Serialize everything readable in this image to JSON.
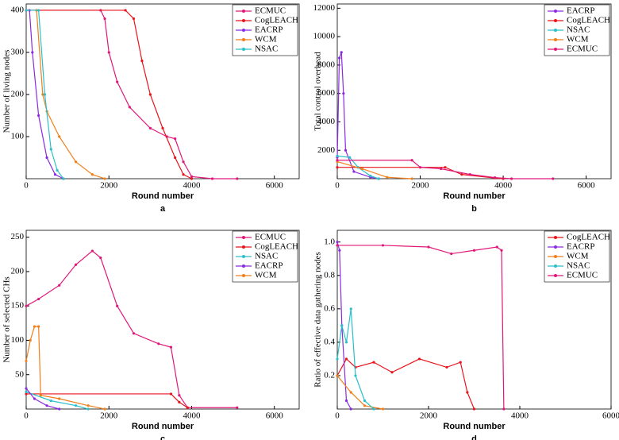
{
  "chart_data": [
    {
      "type": "line",
      "x_label": "Round number",
      "y_label": "Number of living nodes",
      "panel_label": "a",
      "xlim": [
        0,
        6600
      ],
      "xticks": [
        0,
        2000,
        4000,
        6000
      ],
      "ylim": [
        0,
        415
      ],
      "yticks": [
        100,
        200,
        300,
        400
      ],
      "series": [
        {
          "name": "ECMUC",
          "color": "#e0177a",
          "x": [
            0,
            1800,
            1900,
            2000,
            2200,
            2500,
            3000,
            3400,
            3600,
            3800,
            4000,
            4500,
            5100
          ],
          "values": [
            400,
            400,
            380,
            300,
            230,
            170,
            120,
            100,
            95,
            40,
            5,
            0,
            0
          ]
        },
        {
          "name": "CogLEACH",
          "color": "#e8141c",
          "x": [
            0,
            2400,
            2600,
            2800,
            3000,
            3300,
            3600,
            3800,
            4000
          ],
          "values": [
            400,
            400,
            380,
            280,
            200,
            120,
            50,
            10,
            0
          ]
        },
        {
          "name": "EACRP",
          "color": "#8a2be2",
          "x": [
            0,
            80,
            150,
            300,
            500,
            700,
            900
          ],
          "values": [
            400,
            400,
            300,
            150,
            50,
            10,
            0
          ]
        },
        {
          "name": "WCM",
          "color": "#f07f1a",
          "x": [
            0,
            250,
            400,
            500,
            800,
            1200,
            1600,
            1900
          ],
          "values": [
            400,
            400,
            200,
            160,
            100,
            40,
            10,
            0
          ]
        },
        {
          "name": "NSAC",
          "color": "#2bbfc9",
          "x": [
            0,
            300,
            450,
            600,
            750,
            900
          ],
          "values": [
            400,
            400,
            200,
            70,
            20,
            0
          ]
        }
      ]
    },
    {
      "type": "line",
      "x_label": "Round number",
      "y_label": "Total control overhead",
      "panel_label": "b",
      "xlim": [
        0,
        6600
      ],
      "xticks": [
        0,
        2000,
        4000,
        6000
      ],
      "ylim": [
        0,
        12300
      ],
      "yticks": [
        2000,
        4000,
        6000,
        8000,
        10000,
        12000
      ],
      "series": [
        {
          "name": "EACRP",
          "color": "#8a2be2",
          "x": [
            0,
            50,
            100,
            150,
            200,
            400,
            800,
            1000
          ],
          "values": [
            1500,
            8500,
            8900,
            6000,
            2000,
            500,
            100,
            0
          ]
        },
        {
          "name": "CogLEACH",
          "color": "#e8141c",
          "x": [
            0,
            2600,
            3000,
            3800,
            4000
          ],
          "values": [
            800,
            800,
            300,
            50,
            0
          ]
        },
        {
          "name": "NSAC",
          "color": "#2bbfc9",
          "x": [
            0,
            300,
            500,
            800,
            1000
          ],
          "values": [
            1600,
            1500,
            800,
            200,
            0
          ]
        },
        {
          "name": "WCM",
          "color": "#f07f1a",
          "x": [
            0,
            600,
            1200,
            1800
          ],
          "values": [
            1200,
            700,
            100,
            0
          ]
        },
        {
          "name": "ECMUC",
          "color": "#e0177a",
          "x": [
            0,
            1800,
            2000,
            2500,
            3200,
            3800,
            4200,
            5200
          ],
          "values": [
            1300,
            1300,
            800,
            700,
            300,
            80,
            0,
            0
          ]
        }
      ]
    },
    {
      "type": "line",
      "x_label": "Round number",
      "y_label": "Number of selected CHs",
      "panel_label": "c",
      "xlim": [
        0,
        6600
      ],
      "xticks": [
        0,
        2000,
        4000,
        6000
      ],
      "ylim": [
        0,
        260
      ],
      "yticks": [
        50,
        100,
        150,
        200,
        250
      ],
      "series": [
        {
          "name": "ECMUC",
          "color": "#e0177a",
          "x": [
            0,
            300,
            800,
            1200,
            1600,
            1800,
            2200,
            2600,
            3200,
            3500,
            3700,
            3900,
            5100
          ],
          "values": [
            150,
            160,
            180,
            210,
            230,
            220,
            150,
            110,
            95,
            90,
            20,
            2,
            2
          ]
        },
        {
          "name": "CogLEACH",
          "color": "#e8141c",
          "x": [
            0,
            3500,
            3700,
            3900
          ],
          "values": [
            22,
            22,
            10,
            2
          ]
        },
        {
          "name": "NSAC",
          "color": "#2bbfc9",
          "x": [
            0,
            600,
            1200,
            1500
          ],
          "values": [
            25,
            12,
            5,
            0
          ]
        },
        {
          "name": "EACRP",
          "color": "#8a2be2",
          "x": [
            0,
            200,
            500,
            800
          ],
          "values": [
            30,
            15,
            5,
            0
          ]
        },
        {
          "name": "WCM",
          "color": "#f07f1a",
          "x": [
            0,
            100,
            200,
            300,
            350,
            800,
            1500,
            1900
          ],
          "values": [
            70,
            100,
            120,
            120,
            20,
            15,
            5,
            0
          ]
        }
      ]
    },
    {
      "type": "line",
      "x_label": "Round number",
      "y_label": "Ratio of effective data gathering nodes",
      "panel_label": "d",
      "xlim": [
        0,
        6000
      ],
      "xticks": [
        0,
        2000,
        4000,
        6000
      ],
      "ylim": [
        0,
        1.07
      ],
      "yticks": [
        0.2,
        0.4,
        0.6,
        0.8,
        {
          "value": 1,
          "label": "1.0"
        }
      ],
      "series": [
        {
          "name": "CogLEACH",
          "color": "#e8141c",
          "x": [
            0,
            200,
            400,
            800,
            1200,
            1800,
            2400,
            2700,
            2850,
            3000
          ],
          "values": [
            0.2,
            0.3,
            0.25,
            0.28,
            0.22,
            0.3,
            0.25,
            0.28,
            0.1,
            0
          ]
        },
        {
          "name": "EACRP",
          "color": "#8a2be2",
          "x": [
            0,
            50,
            100,
            200,
            300
          ],
          "values": [
            1.0,
            0.95,
            0.5,
            0.05,
            0
          ]
        },
        {
          "name": "WCM",
          "color": "#f07f1a",
          "x": [
            0,
            300,
            600,
            1000
          ],
          "values": [
            0.2,
            0.1,
            0.02,
            0
          ]
        },
        {
          "name": "NSAC",
          "color": "#2bbfc9",
          "x": [
            0,
            100,
            200,
            300,
            400,
            600,
            800
          ],
          "values": [
            0.3,
            0.5,
            0.4,
            0.6,
            0.2,
            0.05,
            0
          ]
        },
        {
          "name": "ECMUC",
          "color": "#e0177a",
          "x": [
            0,
            1000,
            2000,
            2500,
            3000,
            3500,
            3600,
            3650
          ],
          "values": [
            0.98,
            0.98,
            0.97,
            0.93,
            0.95,
            0.97,
            0.95,
            0
          ]
        }
      ]
    }
  ]
}
